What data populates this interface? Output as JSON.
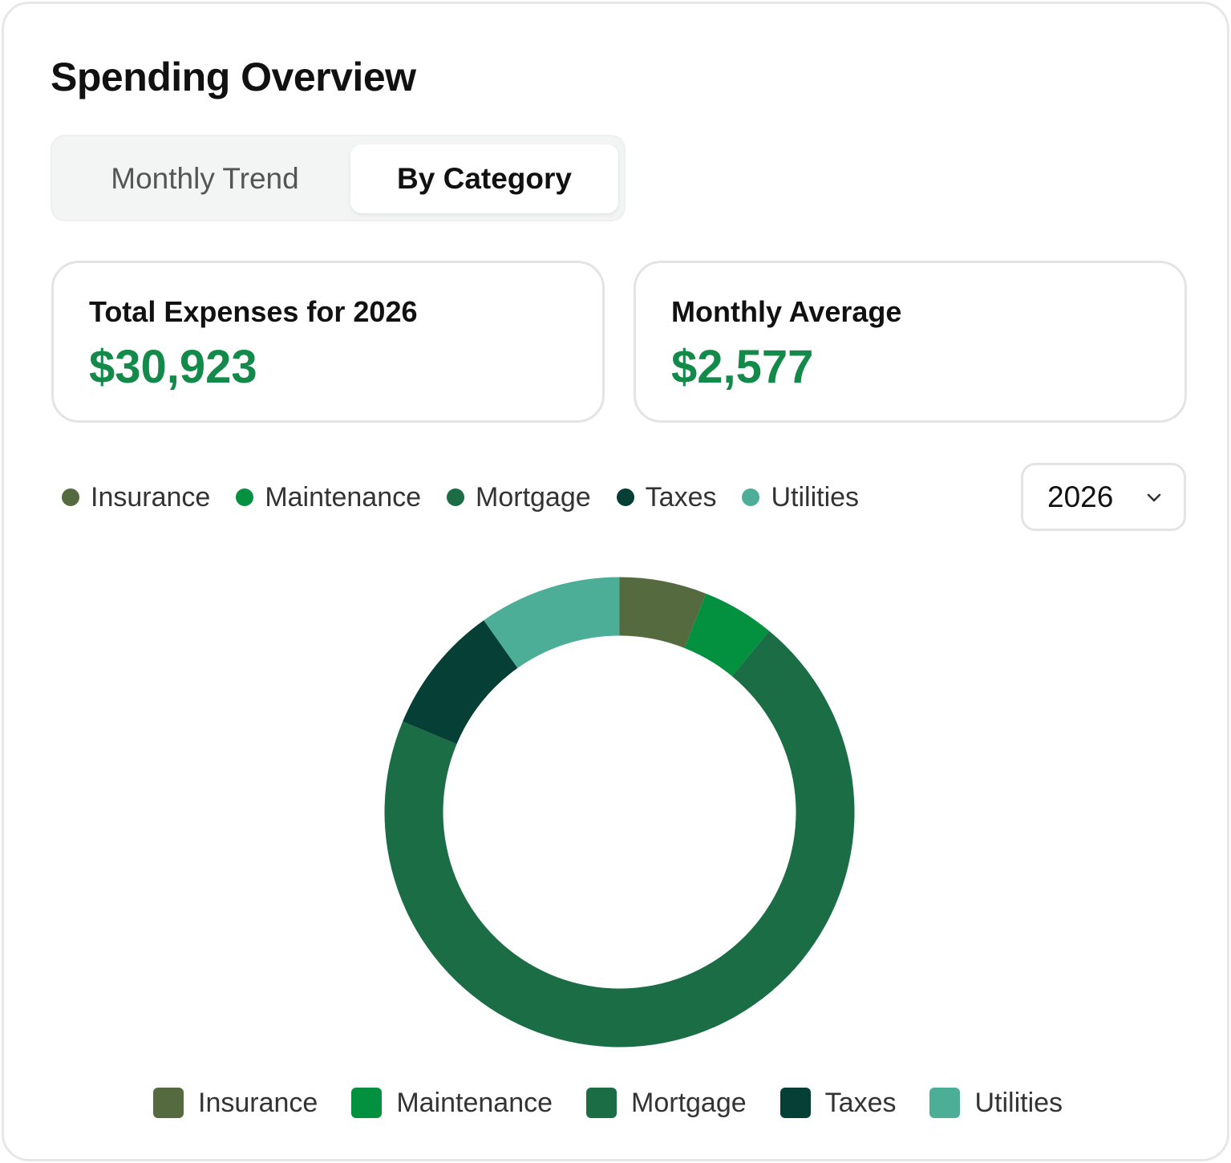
{
  "header": {
    "title": "Spending Overview"
  },
  "tabs": [
    {
      "label": "Monthly Trend",
      "active": false
    },
    {
      "label": "By Category",
      "active": true
    }
  ],
  "stats": {
    "total": {
      "label": "Total Expenses for 2026",
      "value": "$30,923"
    },
    "average": {
      "label": "Monthly Average",
      "value": "$2,577"
    }
  },
  "year_select": {
    "value": "2026"
  },
  "icons": {
    "dropdown": "chevron-down-icon"
  },
  "colors": {
    "accent_green": "#138a4a",
    "Insurance": "#556b3f",
    "Maintenance": "#03913f",
    "Mortgage": "#1a6d44",
    "Taxes": "#063f35",
    "Utilities": "#4cae96"
  },
  "chart_data": {
    "type": "pie",
    "donut": true,
    "categories": [
      "Insurance",
      "Maintenance",
      "Mortgage",
      "Taxes",
      "Utilities"
    ],
    "values": [
      6.0,
      5.0,
      70.3,
      8.9,
      9.8
    ],
    "colors": [
      "#556b3f",
      "#03913f",
      "#1a6d44",
      "#063f35",
      "#4cae96"
    ],
    "legend": [
      "top-left",
      "bottom"
    ]
  }
}
